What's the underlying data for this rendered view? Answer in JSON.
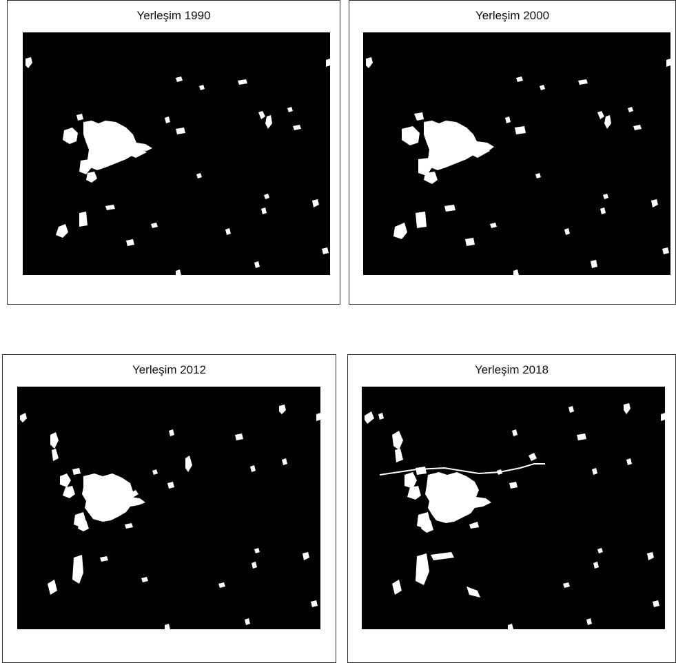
{
  "panels": [
    {
      "title": "Yerleşim 1990",
      "year": 1990
    },
    {
      "title": "Yerleşim 2000",
      "year": 2000
    },
    {
      "title": "Yerleşim 2012",
      "year": 2012
    },
    {
      "title": "Yerleşim 2018",
      "year": 2018
    }
  ],
  "colors": {
    "background": "#000000",
    "settlement": "#ffffff",
    "frame": "#2b2b2b"
  }
}
